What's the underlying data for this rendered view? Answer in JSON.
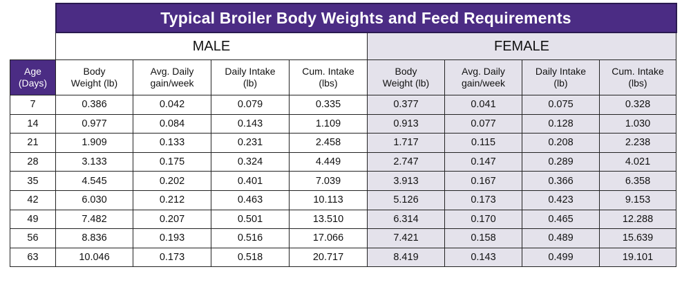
{
  "table": {
    "title": "Typical Broiler Body Weights and Feed Requirements",
    "groups": {
      "male": "MALE",
      "female": "FEMALE"
    },
    "age_header": [
      "Age",
      "(Days)"
    ],
    "col_headers": [
      [
        "Body",
        "Weight (lb)"
      ],
      [
        "Avg. Daily",
        "gain/week"
      ],
      [
        "Daily Intake",
        "(lb)"
      ],
      [
        "Cum. Intake",
        "(lbs)"
      ]
    ],
    "rows": [
      {
        "age": "7",
        "male": [
          "0.386",
          "0.042",
          "0.079",
          "0.335"
        ],
        "female": [
          "0.377",
          "0.041",
          "0.075",
          "0.328"
        ]
      },
      {
        "age": "14",
        "male": [
          "0.977",
          "0.084",
          "0.143",
          "1.109"
        ],
        "female": [
          "0.913",
          "0.077",
          "0.128",
          "1.030"
        ]
      },
      {
        "age": "21",
        "male": [
          "1.909",
          "0.133",
          "0.231",
          "2.458"
        ],
        "female": [
          "1.717",
          "0.115",
          "0.208",
          "2.238"
        ]
      },
      {
        "age": "28",
        "male": [
          "3.133",
          "0.175",
          "0.324",
          "4.449"
        ],
        "female": [
          "2.747",
          "0.147",
          "0.289",
          "4.021"
        ]
      },
      {
        "age": "35",
        "male": [
          "4.545",
          "0.202",
          "0.401",
          "7.039"
        ],
        "female": [
          "3.913",
          "0.167",
          "0.366",
          "6.358"
        ]
      },
      {
        "age": "42",
        "male": [
          "6.030",
          "0.212",
          "0.463",
          "10.113"
        ],
        "female": [
          "5.126",
          "0.173",
          "0.423",
          "9.153"
        ]
      },
      {
        "age": "49",
        "male": [
          "7.482",
          "0.207",
          "0.501",
          "13.510"
        ],
        "female": [
          "6.314",
          "0.170",
          "0.465",
          "12.288"
        ]
      },
      {
        "age": "56",
        "male": [
          "8.836",
          "0.193",
          "0.516",
          "17.066"
        ],
        "female": [
          "7.421",
          "0.158",
          "0.489",
          "15.639"
        ]
      },
      {
        "age": "63",
        "male": [
          "10.046",
          "0.173",
          "0.518",
          "20.717"
        ],
        "female": [
          "8.419",
          "0.143",
          "0.499",
          "19.101"
        ]
      }
    ],
    "colors": {
      "header_purple": "#4b2c84",
      "female_shade": "#e4e2eb"
    }
  }
}
